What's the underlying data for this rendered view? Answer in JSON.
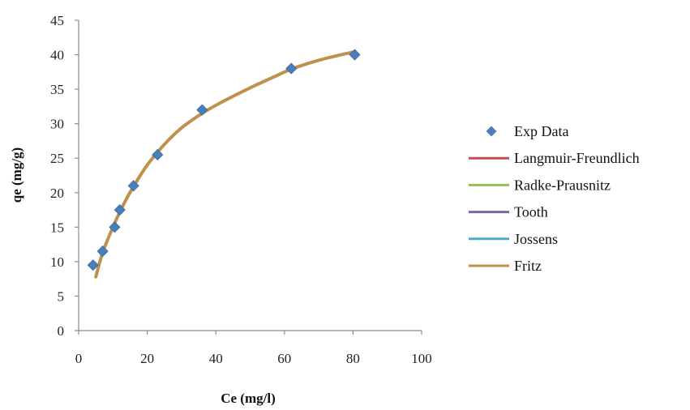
{
  "chart_data": {
    "type": "scatter",
    "title": "",
    "xlabel": "Ce (mg/l)",
    "ylabel": "qe (mg/g)",
    "xlim": [
      0,
      100
    ],
    "ylim": [
      0,
      45
    ],
    "xticks": [
      0,
      20,
      40,
      60,
      80,
      100
    ],
    "yticks": [
      0,
      5,
      10,
      15,
      20,
      25,
      30,
      35,
      40,
      45
    ],
    "grid": false,
    "legend_position": "right",
    "series": [
      {
        "name": "Exp Data",
        "kind": "marker",
        "marker": "diamond",
        "color": "#4A7EBB",
        "x": [
          4.2,
          7.0,
          10.5,
          12.0,
          16.0,
          23.0,
          36.0,
          62.0,
          80.5
        ],
        "y": [
          9.5,
          11.5,
          15.0,
          17.5,
          21.0,
          25.5,
          32.0,
          38.0,
          40.0
        ]
      },
      {
        "name": "Langmuir-Freundlich",
        "kind": "line",
        "color": "#C0504D",
        "x": [
          5,
          7,
          10,
          13,
          16,
          20,
          25,
          30,
          36,
          42,
          50,
          57,
          62,
          70,
          80
        ],
        "y": [
          7.8,
          11.3,
          15.0,
          18.2,
          20.9,
          24.0,
          27.0,
          29.4,
          31.5,
          33.2,
          35.2,
          36.8,
          37.9,
          39.2,
          40.4
        ]
      },
      {
        "name": "Radke-Prausnitz",
        "kind": "line",
        "color": "#9BBB59",
        "x": [
          5,
          7,
          10,
          13,
          16,
          20,
          25,
          30,
          36,
          42,
          50,
          57,
          62,
          70,
          80
        ],
        "y": [
          7.8,
          11.3,
          15.0,
          18.2,
          20.9,
          24.0,
          27.0,
          29.4,
          31.5,
          33.2,
          35.2,
          36.8,
          37.9,
          39.2,
          40.4
        ]
      },
      {
        "name": "Tooth",
        "kind": "line",
        "color": "#8064A2",
        "x": [
          5,
          7,
          10,
          13,
          16,
          20,
          25,
          30,
          36,
          42,
          50,
          57,
          62,
          70,
          80
        ],
        "y": [
          7.8,
          11.3,
          15.0,
          18.2,
          20.9,
          24.0,
          27.0,
          29.4,
          31.5,
          33.2,
          35.2,
          36.8,
          37.9,
          39.2,
          40.4
        ]
      },
      {
        "name": "Jossens",
        "kind": "line",
        "color": "#4BACC6",
        "x": [
          5,
          7,
          10,
          13,
          16,
          20,
          25,
          30,
          36,
          42,
          50,
          57,
          62,
          70,
          80
        ],
        "y": [
          7.8,
          11.3,
          15.0,
          18.2,
          20.9,
          24.0,
          27.0,
          29.4,
          31.5,
          33.2,
          35.2,
          36.8,
          37.9,
          39.2,
          40.4
        ]
      },
      {
        "name": "Fritz",
        "kind": "line",
        "color": "#C0904D",
        "x": [
          5,
          7,
          10,
          13,
          16,
          20,
          25,
          30,
          36,
          42,
          50,
          57,
          62,
          70,
          80
        ],
        "y": [
          7.8,
          11.3,
          15.0,
          18.2,
          20.9,
          24.0,
          27.0,
          29.4,
          31.5,
          33.2,
          35.2,
          36.8,
          37.9,
          39.2,
          40.4
        ]
      }
    ]
  }
}
